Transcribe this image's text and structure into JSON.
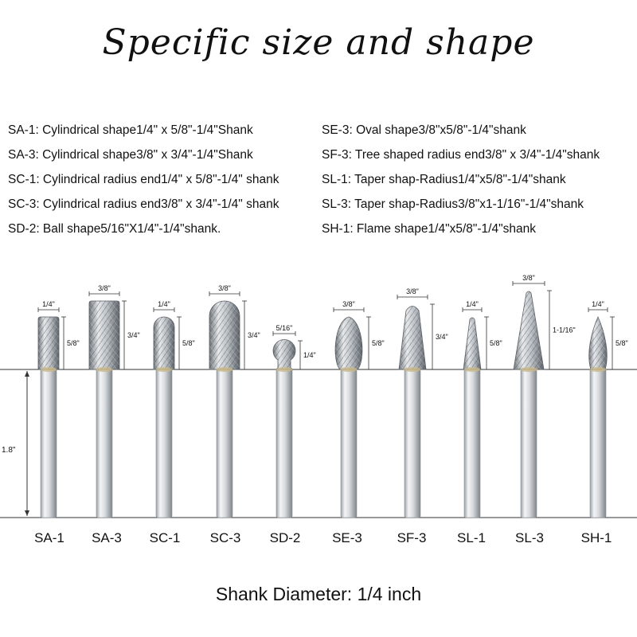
{
  "title": "Specific size and shape",
  "specs_left": [
    "SA-1: Cylindrical shape1/4\" x 5/8\"-1/4\"Shank",
    "SA-3: Cylindrical shape3/8\" x 3/4\"-1/4\"Shank",
    "SC-1: Cylindrical radius end1/4\" x 5/8\"-1/4\" shank",
    "SC-3: Cylindrical radius end3/8\" x 3/4\"-1/4\" shank",
    "SD-2: Ball shape5/16\"X1/4\"-1/4\"shank."
  ],
  "specs_right": [
    "SE-3: Oval shape3/8\"x5/8\"-1/4\"shank",
    "SF-3: Tree shaped radius end3/8\" x 3/4\"-1/4\"shank",
    "SL-1: Taper shap-Radius1/4\"x5/8\"-1/4\"shank",
    "SL-3: Taper shap-Radius3/8\"x1-1/16\"-1/4\"shank",
    "SH-1: Flame shape1/4\"x5/8\"-1/4\"shank"
  ],
  "shank_length_label": "1.8\"",
  "burrs": [
    {
      "code": "SA-1",
      "width": "1/4\"",
      "height": "5/8\""
    },
    {
      "code": "SA-3",
      "width": "3/8\"",
      "height": "3/4\""
    },
    {
      "code": "SC-1",
      "width": "1/4\"",
      "height": "5/8\""
    },
    {
      "code": "SC-3",
      "width": "3/8\"",
      "height": "3/4\""
    },
    {
      "code": "SD-2",
      "width": "5/16\"",
      "height": "1/4\""
    },
    {
      "code": "SE-3",
      "width": "3/8\"",
      "height": "5/8\""
    },
    {
      "code": "SF-3",
      "width": "3/8\"",
      "height": "3/4\""
    },
    {
      "code": "SL-1",
      "width": "1/4\"",
      "height": "5/8\""
    },
    {
      "code": "SL-3",
      "width": "3/8\"",
      "height": "1-1/16\""
    },
    {
      "code": "SH-1",
      "width": "1/4\"",
      "height": "5/8\""
    }
  ],
  "footer": "Shank Diameter: 1/4 inch",
  "colors": {
    "steel_light": "#eef0f2",
    "steel_dark": "#8a8f95",
    "line": "#333333"
  }
}
